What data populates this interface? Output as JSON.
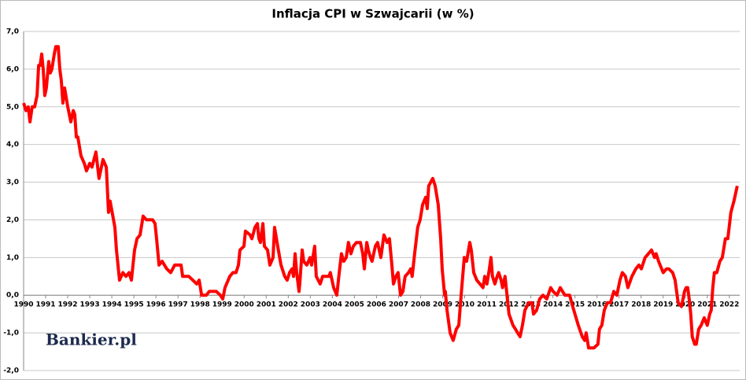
{
  "chart_data": {
    "type": "line",
    "title": "Inflacja CPI w Szwajcarii (w %)",
    "watermark": "Bankier.pl",
    "x": [
      1990.0,
      1990.11,
      1990.21,
      1990.29,
      1990.39,
      1990.5,
      1990.61,
      1990.68,
      1990.75,
      1990.82,
      1990.89,
      1990.96,
      1991.03,
      1991.14,
      1991.21,
      1991.28,
      1991.39,
      1991.46,
      1991.57,
      1991.64,
      1991.71,
      1991.78,
      1991.86,
      1992.0,
      1992.14,
      1992.25,
      1992.32,
      1992.39,
      1992.46,
      1992.6,
      1992.75,
      1992.85,
      1993.0,
      1993.1,
      1993.28,
      1993.42,
      1993.6,
      1993.75,
      1993.85,
      1993.92,
      1994.14,
      1994.21,
      1994.35,
      1994.5,
      1994.64,
      1994.78,
      1994.89,
      1995.03,
      1995.14,
      1995.28,
      1995.42,
      1995.57,
      1995.85,
      1995.96,
      1996.03,
      1996.14,
      1996.28,
      1996.49,
      1996.67,
      1996.85,
      1997.14,
      1997.21,
      1997.49,
      1997.67,
      1997.85,
      1997.96,
      1998.07,
      1998.28,
      1998.42,
      1998.74,
      1998.92,
      1999.03,
      1999.13,
      1999.35,
      1999.49,
      1999.63,
      1999.74,
      1999.81,
      1999.99,
      2000.06,
      2000.27,
      2000.35,
      2000.49,
      2000.6,
      2000.67,
      2000.74,
      2000.85,
      2000.92,
      2001.06,
      2001.17,
      2001.31,
      2001.38,
      2001.52,
      2001.67,
      2001.84,
      2001.95,
      2002.06,
      2002.17,
      2002.24,
      2002.31,
      2002.38,
      2002.49,
      2002.52,
      2002.63,
      2002.7,
      2002.84,
      2002.99,
      2003.06,
      2003.2,
      2003.27,
      2003.45,
      2003.56,
      2003.84,
      2003.91,
      2004.06,
      2004.2,
      2004.31,
      2004.41,
      2004.52,
      2004.63,
      2004.73,
      2004.84,
      2004.95,
      2005.09,
      2005.27,
      2005.38,
      2005.45,
      2005.56,
      2005.63,
      2005.73,
      2005.8,
      2005.95,
      2006.05,
      2006.2,
      2006.34,
      2006.48,
      2006.59,
      2006.7,
      2006.77,
      2006.88,
      2006.98,
      2007.09,
      2007.2,
      2007.3,
      2007.45,
      2007.55,
      2007.62,
      2007.73,
      2007.87,
      2007.98,
      2008.09,
      2008.23,
      2008.3,
      2008.37,
      2008.55,
      2008.66,
      2008.8,
      2008.91,
      2008.98,
      2009.09,
      2009.12,
      2009.2,
      2009.34,
      2009.48,
      2009.62,
      2009.73,
      2009.84,
      2009.98,
      2010.09,
      2010.23,
      2010.3,
      2010.41,
      2010.55,
      2010.69,
      2010.83,
      2010.91,
      2011.01,
      2011.12,
      2011.19,
      2011.26,
      2011.37,
      2011.47,
      2011.54,
      2011.65,
      2011.72,
      2011.83,
      2011.9,
      2012.01,
      2012.19,
      2012.3,
      2012.4,
      2012.51,
      2012.62,
      2012.73,
      2012.9,
      2013.05,
      2013.12,
      2013.26,
      2013.4,
      2013.55,
      2013.72,
      2013.9,
      2014.01,
      2014.19,
      2014.33,
      2014.54,
      2014.76,
      2014.9,
      2015.15,
      2015.33,
      2015.44,
      2015.51,
      2015.62,
      2015.86,
      2016.04,
      2016.11,
      2016.22,
      2016.33,
      2016.47,
      2016.61,
      2016.76,
      2016.9,
      2017.04,
      2017.15,
      2017.29,
      2017.4,
      2017.58,
      2017.76,
      2017.9,
      2018.01,
      2018.18,
      2018.33,
      2018.47,
      2018.61,
      2018.68,
      2018.79,
      2019.0,
      2019.15,
      2019.25,
      2019.43,
      2019.54,
      2019.68,
      2019.83,
      2019.97,
      2020.04,
      2020.11,
      2020.18,
      2020.25,
      2020.32,
      2020.43,
      2020.5,
      2020.61,
      2020.72,
      2020.86,
      2020.93,
      2021.0,
      2021.11,
      2021.18,
      2021.25,
      2021.32,
      2021.43,
      2021.57,
      2021.68,
      2021.82,
      2021.93,
      2022.07,
      2022.21,
      2022.36
    ],
    "series": [
      {
        "color": "#ff0000",
        "values": [
          5.1,
          4.9,
          5.0,
          4.6,
          5.0,
          5.0,
          5.3,
          6.1,
          6.1,
          6.4,
          6.0,
          5.3,
          5.5,
          6.2,
          5.9,
          6.0,
          6.4,
          6.6,
          6.6,
          6.0,
          5.7,
          5.1,
          5.5,
          5.0,
          4.6,
          4.9,
          4.8,
          4.2,
          4.2,
          3.7,
          3.5,
          3.3,
          3.5,
          3.4,
          3.8,
          3.1,
          3.6,
          3.4,
          2.2,
          2.5,
          1.8,
          1.2,
          0.4,
          0.6,
          0.5,
          0.6,
          0.4,
          1.2,
          1.5,
          1.6,
          2.1,
          2.0,
          2.0,
          1.9,
          1.5,
          0.8,
          0.9,
          0.7,
          0.6,
          0.8,
          0.8,
          0.5,
          0.5,
          0.4,
          0.3,
          0.4,
          0.0,
          0.0,
          0.1,
          0.1,
          0.0,
          -0.1,
          0.2,
          0.5,
          0.6,
          0.6,
          0.8,
          1.2,
          1.3,
          1.7,
          1.6,
          1.5,
          1.8,
          1.9,
          1.5,
          1.4,
          1.9,
          1.3,
          1.2,
          0.8,
          1.0,
          1.8,
          1.3,
          0.8,
          0.5,
          0.4,
          0.6,
          0.7,
          0.5,
          1.1,
          0.6,
          0.1,
          0.3,
          1.2,
          0.9,
          0.8,
          1.0,
          0.8,
          1.3,
          0.5,
          0.3,
          0.5,
          0.5,
          0.6,
          0.2,
          0.0,
          0.6,
          1.1,
          0.9,
          1.0,
          1.4,
          1.1,
          1.3,
          1.4,
          1.4,
          1.1,
          0.7,
          1.4,
          1.2,
          1.0,
          0.9,
          1.3,
          1.4,
          1.0,
          1.6,
          1.4,
          1.5,
          0.8,
          0.3,
          0.5,
          0.6,
          0.0,
          0.1,
          0.5,
          0.6,
          0.7,
          0.5,
          1.1,
          1.8,
          2.0,
          2.4,
          2.6,
          2.3,
          2.9,
          3.1,
          2.9,
          2.4,
          1.5,
          0.7,
          0.0,
          0.1,
          -0.4,
          -1.0,
          -1.2,
          -0.9,
          -0.8,
          0.0,
          1.0,
          0.9,
          1.4,
          1.2,
          0.6,
          0.4,
          0.3,
          0.2,
          0.5,
          0.3,
          0.7,
          1.0,
          0.5,
          0.3,
          0.5,
          0.6,
          0.4,
          0.2,
          0.5,
          0.1,
          -0.5,
          -0.8,
          -0.9,
          -1.0,
          -1.1,
          -0.8,
          -0.4,
          -0.2,
          -0.2,
          -0.5,
          -0.4,
          -0.1,
          0.0,
          -0.1,
          0.2,
          0.1,
          0.0,
          0.2,
          0.0,
          0.0,
          -0.3,
          -0.8,
          -1.1,
          -1.2,
          -1.0,
          -1.4,
          -1.4,
          -1.3,
          -0.9,
          -0.8,
          -0.4,
          -0.2,
          -0.2,
          0.1,
          0.0,
          0.4,
          0.6,
          0.5,
          0.2,
          0.5,
          0.7,
          0.8,
          0.7,
          1.0,
          1.1,
          1.2,
          1.0,
          1.1,
          0.9,
          0.6,
          0.7,
          0.7,
          0.6,
          0.4,
          -0.2,
          -0.3,
          0.1,
          0.2,
          0.2,
          -0.1,
          -0.5,
          -1.1,
          -1.3,
          -1.3,
          -0.9,
          -0.8,
          -0.6,
          -0.7,
          -0.8,
          -0.5,
          -0.4,
          0.2,
          0.6,
          0.6,
          0.9,
          1.0,
          1.5,
          1.5,
          2.2,
          2.5,
          2.9
        ]
      }
    ],
    "xlim": [
      1990,
      2022.47
    ],
    "xticks": [
      1990,
      1991,
      1992,
      1993,
      1994,
      1995,
      1996,
      1997,
      1998,
      1999,
      2000,
      2001,
      2002,
      2003,
      2004,
      2005,
      2006,
      2007,
      2008,
      2009,
      2010,
      2011,
      2012,
      2013,
      2014,
      2015,
      2016,
      2017,
      2018,
      2019,
      2020,
      2021,
      2022
    ],
    "ylim": [
      -2,
      7
    ],
    "yticks": [
      {
        "value": -2,
        "label": "-2,0"
      },
      {
        "value": -1,
        "label": "-1,0"
      },
      {
        "value": 0,
        "label": "0,0"
      },
      {
        "value": 1,
        "label": "1,0"
      },
      {
        "value": 2,
        "label": "2,0"
      },
      {
        "value": 3,
        "label": "3,0"
      },
      {
        "value": 4,
        "label": "4,0"
      },
      {
        "value": 5,
        "label": "5,0"
      },
      {
        "value": 6,
        "label": "6,0"
      },
      {
        "value": 7,
        "label": "7,0"
      }
    ],
    "grid": true
  }
}
